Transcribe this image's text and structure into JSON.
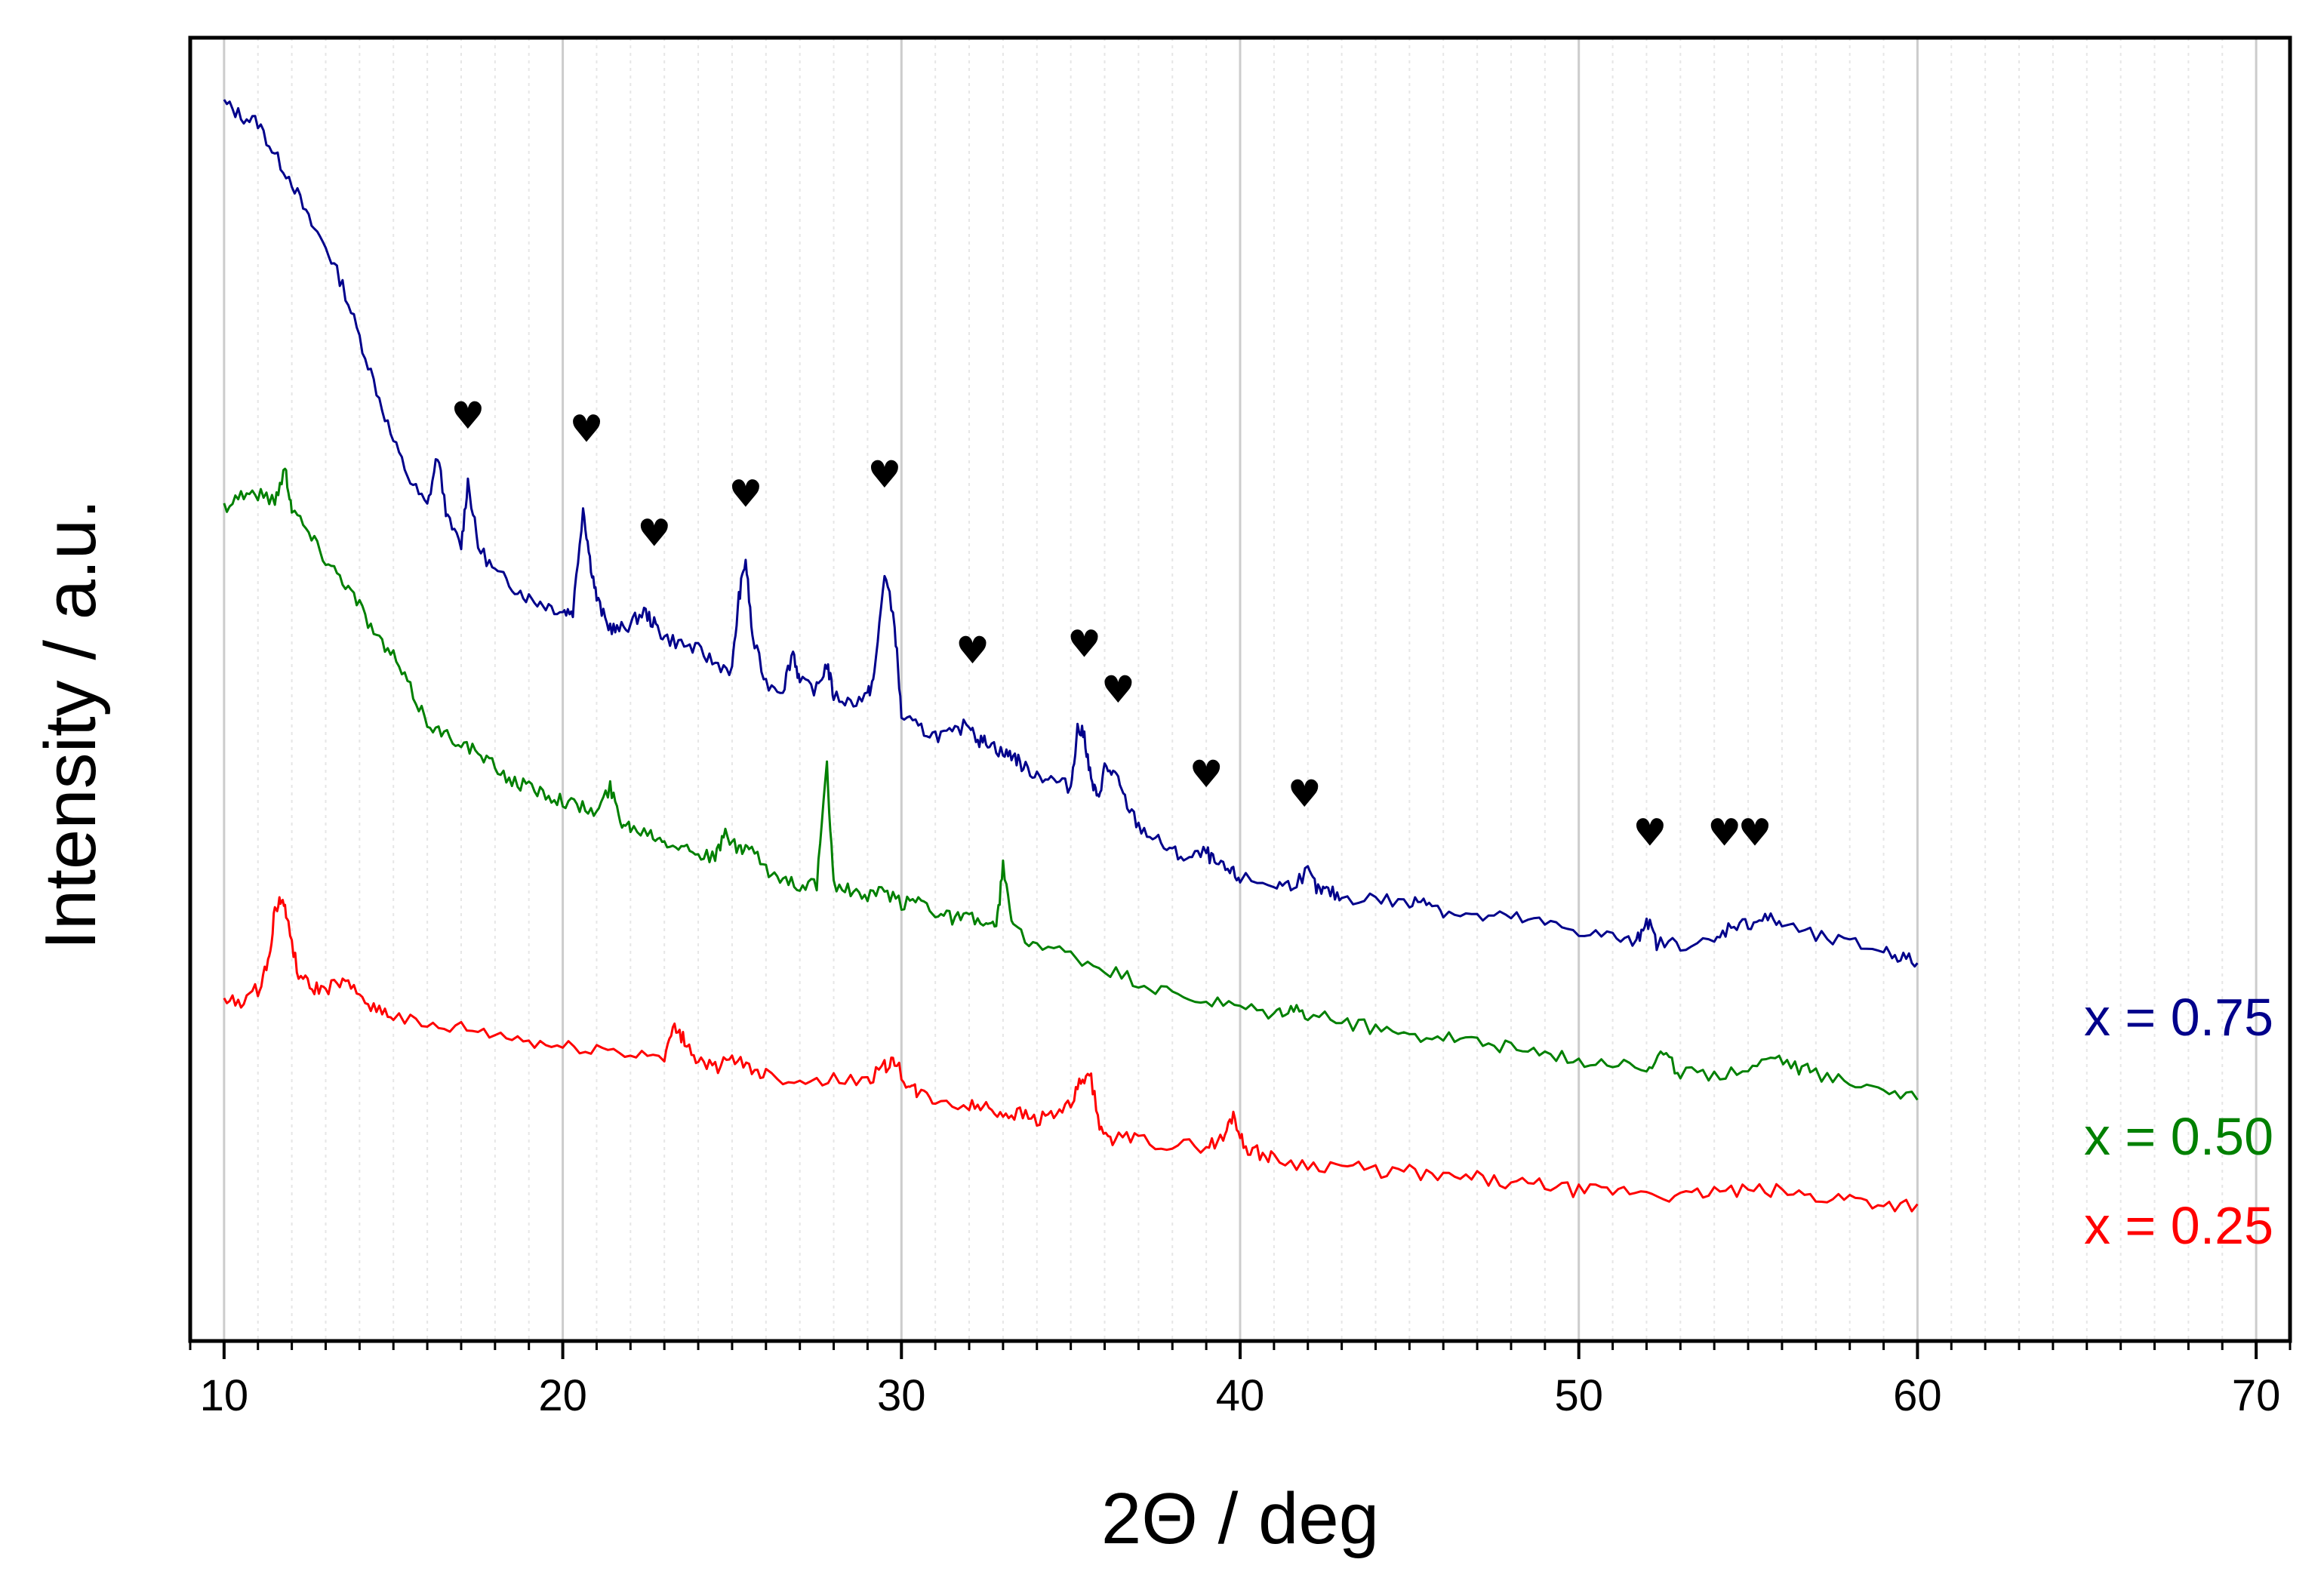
{
  "chart_data": {
    "type": "line",
    "title": "",
    "xlabel": "2Θ / deg",
    "ylabel": "Intensity / a.u.",
    "xlim": [
      9,
      71
    ],
    "ylim": [
      0,
      100
    ],
    "x_ticks": [
      10,
      20,
      30,
      40,
      50,
      60,
      70
    ],
    "x_tick_labels": [
      "10",
      "20",
      "30",
      "40",
      "50",
      "60",
      "70"
    ],
    "grid": "vertical",
    "marker_symbol": "♥",
    "series": [
      {
        "name": "x = 0.75",
        "color": "#00008b",
        "x": [
          10,
          10.5,
          11,
          11.5,
          12,
          12.5,
          13,
          13.5,
          14,
          14.5,
          15,
          15.5,
          16,
          16.3,
          16.6,
          17,
          17.2,
          17.5,
          18,
          18.5,
          19,
          19.5,
          20,
          20.3,
          20.6,
          20.8,
          21,
          21.3,
          21.6,
          22,
          22.4,
          22.7,
          23,
          23.5,
          24,
          24.5,
          25,
          25.2,
          25.4,
          25.6,
          26,
          26.5,
          26.8,
          27,
          27.5,
          27.8,
          28,
          28.5,
          29,
          29.2,
          29.5,
          29.8,
          30,
          30.5,
          31,
          31.5,
          32,
          32.3,
          32.6,
          33,
          33.3,
          33.6,
          34,
          34.5,
          35,
          35.2,
          35.4,
          35.6,
          35.8,
          36,
          36.3,
          36.6,
          37,
          37.5,
          38,
          38.5,
          39,
          39.3,
          39.7,
          40,
          41,
          41.5,
          42,
          42.3,
          42.6,
          43,
          44,
          45,
          45.5,
          46,
          47,
          48,
          49,
          50,
          51,
          51.7,
          52,
          52.3,
          53,
          54,
          54.5,
          55,
          55.5,
          56,
          57,
          58,
          59,
          59.5,
          60
        ],
        "values": [
          95,
          94,
          93.5,
          91,
          89,
          86,
          84,
          81,
          77,
          73,
          69,
          66,
          64,
          68,
          63,
          61,
          66,
          61,
          59,
          58,
          57,
          56.5,
          56,
          56,
          64,
          60,
          57,
          55,
          54.5,
          55,
          56,
          55,
          54,
          53.5,
          53,
          52,
          51.5,
          57,
          60,
          54,
          50.5,
          50,
          53,
          50.5,
          50,
          52,
          49.5,
          49,
          49.5,
          51,
          59,
          55,
          48,
          47,
          46.5,
          46.5,
          47.5,
          46,
          46,
          45,
          45,
          44,
          43.5,
          43,
          42.5,
          47,
          46.5,
          43,
          41.5,
          44,
          43.5,
          41.5,
          39.5,
          38.5,
          37.5,
          37,
          37.5,
          36.5,
          36,
          35.5,
          35,
          35,
          36,
          34.5,
          34.5,
          34,
          34,
          33.5,
          34,
          33,
          32.5,
          32.5,
          32,
          31.5,
          31,
          30.5,
          32.5,
          30.5,
          30.5,
          30.5,
          32,
          32,
          32.5,
          32,
          31,
          30.5,
          30,
          29.5,
          29
        ]
      },
      {
        "name": "x = 0.50",
        "color": "#008000",
        "x": [
          10,
          10.5,
          11,
          11.5,
          11.8,
          12,
          12.5,
          13,
          13.5,
          14,
          14.5,
          15,
          15.5,
          16,
          16.5,
          17,
          17.5,
          18,
          18.5,
          19,
          19.5,
          20,
          20.5,
          21,
          21.4,
          21.7,
          22,
          22.6,
          23,
          23.5,
          24,
          24.5,
          24.8,
          25.2,
          25.5,
          26,
          26.5,
          27,
          27.5,
          27.8,
          28,
          28.5,
          29,
          29.5,
          30,
          30.5,
          31,
          31.5,
          32,
          32.5,
          32.8,
          33,
          33.3,
          34,
          35,
          36,
          37,
          38,
          39,
          40,
          41,
          41.5,
          42,
          43,
          44,
          45,
          46,
          47,
          48,
          49,
          50,
          51,
          52,
          52.5,
          53,
          54,
          55,
          55.8,
          56.5,
          57,
          58,
          59,
          60
        ],
        "values": [
          64,
          65,
          65,
          64.5,
          67,
          64,
          62,
          60,
          58.5,
          56.5,
          54,
          52.5,
          50,
          47.5,
          46.5,
          46,
          45,
          44,
          43,
          42.5,
          42,
          41.5,
          41,
          40.5,
          42.5,
          40,
          39.5,
          39,
          38.5,
          38,
          37.5,
          37,
          39,
          37.5,
          38,
          36,
          35.5,
          35,
          35,
          44,
          35,
          34.5,
          34,
          34.5,
          33.5,
          34,
          33,
          32.5,
          32.5,
          32,
          31.5,
          36.5,
          31.5,
          30.5,
          29.5,
          28.5,
          27.5,
          26.5,
          26,
          25.5,
          25,
          25.5,
          25,
          24.5,
          24,
          23.5,
          23.5,
          23,
          22.5,
          22,
          21.5,
          21.5,
          21,
          22,
          20.5,
          20.5,
          21,
          22,
          21,
          20.5,
          20,
          19.5,
          18.5
        ]
      },
      {
        "name": "x = 0.25",
        "color": "#ff0000",
        "x": [
          10,
          10.5,
          11,
          11.3,
          11.5,
          11.7,
          11.9,
          12.2,
          12.6,
          13,
          13.5,
          14,
          14.5,
          15,
          16,
          17,
          18,
          19,
          20,
          21,
          22,
          23,
          23.3,
          23.6,
          24,
          24.5,
          25,
          25.5,
          26,
          27,
          28,
          29,
          29.5,
          29.8,
          30.2,
          30.5,
          31,
          32,
          32.5,
          33,
          33.5,
          34,
          34.5,
          35,
          35.3,
          35.6,
          35.9,
          36.3,
          37,
          38,
          39,
          39.5,
          39.8,
          40.1,
          40.5,
          41,
          42,
          43,
          44,
          45,
          46,
          47,
          48,
          49,
          50,
          51,
          52,
          53,
          54,
          55,
          56,
          57,
          58,
          59,
          60
        ],
        "values": [
          26,
          26,
          27,
          29,
          33,
          34,
          32,
          28,
          27,
          27,
          27.5,
          26.5,
          25.5,
          25,
          24,
          24,
          23.5,
          23,
          22.5,
          22.5,
          22,
          22,
          24,
          23,
          21.5,
          21,
          21.5,
          21,
          20.5,
          20,
          20,
          20,
          21,
          21.5,
          19.5,
          19,
          18.5,
          18,
          18,
          17.5,
          17.5,
          17,
          17.5,
          18,
          20,
          20,
          16,
          15.5,
          15.5,
          15,
          15,
          15.5,
          17.5,
          15,
          14.5,
          14,
          13.5,
          13.5,
          13,
          13,
          12.5,
          12.5,
          12,
          12,
          11.5,
          11.5,
          11.5,
          11,
          11.5,
          11.5,
          11.5,
          11,
          11,
          10.5,
          10.5
        ]
      }
    ],
    "markers": [
      {
        "x": 17.2,
        "y": 70
      },
      {
        "x": 20.7,
        "y": 69
      },
      {
        "x": 22.7,
        "y": 61
      },
      {
        "x": 25.4,
        "y": 64
      },
      {
        "x": 29.5,
        "y": 65.5
      },
      {
        "x": 32.1,
        "y": 52
      },
      {
        "x": 35.4,
        "y": 52.5
      },
      {
        "x": 36.4,
        "y": 49
      },
      {
        "x": 39.0,
        "y": 42.5
      },
      {
        "x": 41.9,
        "y": 41
      },
      {
        "x": 52.1,
        "y": 38
      },
      {
        "x": 54.3,
        "y": 38
      },
      {
        "x": 55.2,
        "y": 38
      }
    ],
    "legend": [
      {
        "label": "x = 0.75",
        "color": "#00008b"
      },
      {
        "label": "x = 0.50",
        "color": "#008000"
      },
      {
        "label": "x = 0.25",
        "color": "#ff0000"
      }
    ],
    "legend_position": "right"
  }
}
